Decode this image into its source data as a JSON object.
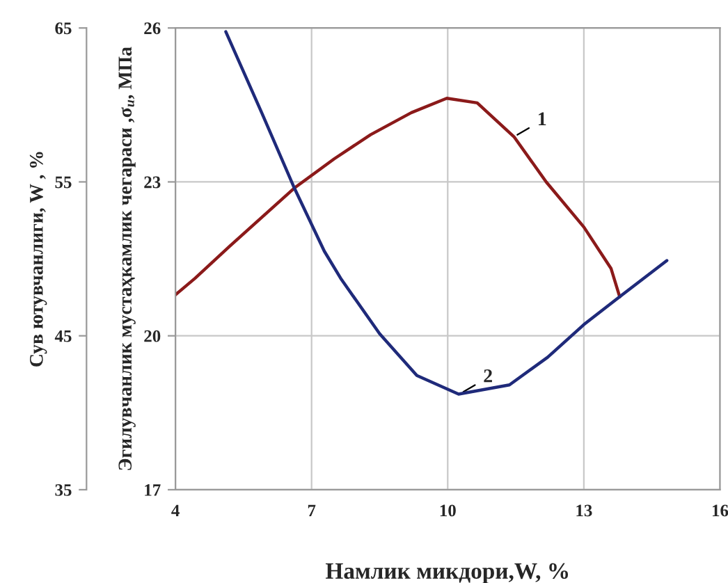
{
  "chart_data": {
    "type": "line",
    "xlabel": "Намлик микдори,W, %",
    "ylabel": "Эгилувчанлик мустаҳкамлик чегараси ,σ$_{и}$, МПа",
    "y2label": "Сув ютувчанлиги, W , %",
    "xlim": [
      4,
      16
    ],
    "xticks": [
      4,
      7,
      10,
      13,
      16
    ],
    "ylim": [
      17,
      26
    ],
    "yticks": [
      17,
      20,
      23,
      26
    ],
    "y2lim": [
      35,
      65
    ],
    "y2ticks": [
      35,
      45,
      55,
      65
    ],
    "grid": true,
    "legend": false,
    "marker": "none",
    "line_style": "solid",
    "series": [
      {
        "color": "#8b1a1a",
        "x": [
          4,
          4.43,
          5.2,
          6.62,
          7.5,
          8.3,
          9.2,
          9.98,
          10.65,
          11.46,
          12.17,
          13.0,
          13.6,
          13.79
        ],
        "values": [
          20.8,
          21.12,
          21.75,
          22.88,
          23.45,
          23.92,
          24.35,
          24.63,
          24.54,
          23.88,
          23.0,
          22.12,
          21.31,
          20.76
        ]
      },
      {
        "color": "#1f2a7a",
        "axis": "y2",
        "x": [
          5.11,
          5.9,
          6.62,
          7.28,
          7.64,
          8.5,
          9.32,
          10.24,
          11.36,
          12.2,
          13.0,
          13.79,
          14.83
        ],
        "values": [
          64.76,
          59.5,
          54.6,
          50.5,
          48.74,
          45.13,
          42.42,
          41.21,
          41.81,
          43.6,
          45.73,
          47.54,
          49.89
        ]
      }
    ],
    "annotations": [
      {
        "text": "1",
        "x": 11.46,
        "y": 23.88
      },
      {
        "text": "2",
        "x": 10.27,
        "y": 18.87
      }
    ]
  }
}
